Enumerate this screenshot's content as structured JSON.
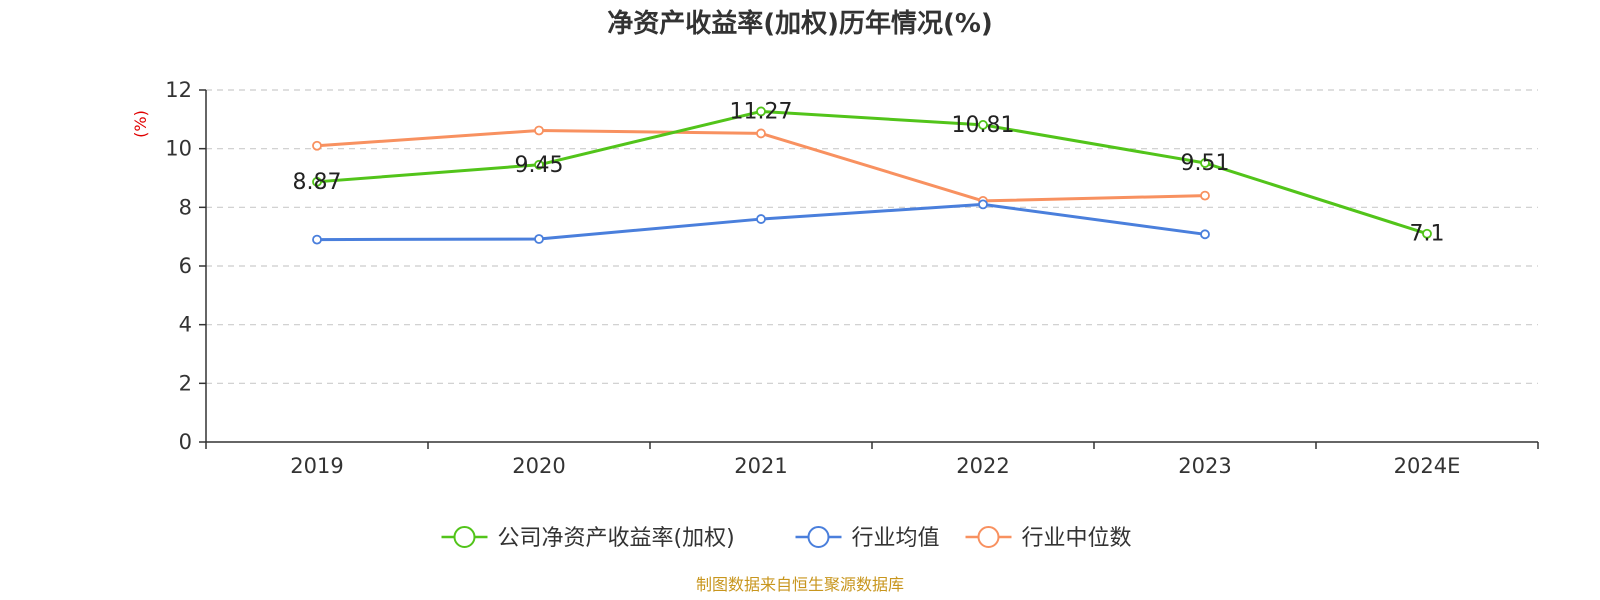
{
  "chart_data": {
    "type": "line",
    "title": "净资产收益率(加权)历年情况(%)",
    "ylabel": "(%)",
    "xlabel": "",
    "categories": [
      "2019",
      "2020",
      "2021",
      "2022",
      "2023",
      "2024E"
    ],
    "ylim": [
      0,
      12
    ],
    "yticks": [
      0,
      2,
      4,
      6,
      8,
      10,
      12
    ],
    "grid": true,
    "legend_position": "bottom-center",
    "series": [
      {
        "name": "公司净资产收益率(加权)",
        "color": "#52c41a",
        "values": [
          8.87,
          9.45,
          11.27,
          10.81,
          9.51,
          7.1
        ],
        "labels": [
          "8.87",
          "9.45",
          "11.27",
          "10.81",
          "9.51",
          "7.1"
        ],
        "show_labels": true
      },
      {
        "name": "行业均值",
        "color": "#4a7fdc",
        "values": [
          6.9,
          6.92,
          7.6,
          8.1,
          7.08,
          null
        ],
        "show_labels": false
      },
      {
        "name": "行业中位数",
        "color": "#f89160",
        "values": [
          10.1,
          10.62,
          10.52,
          8.22,
          8.4,
          null
        ],
        "show_labels": false
      }
    ],
    "source_note": "制图数据来自恒生聚源数据库",
    "colors": {
      "axis": "#333333",
      "grid": "#cccccc",
      "ylabel": "#e00000",
      "source": "#c8961e",
      "title": "#333333"
    }
  }
}
